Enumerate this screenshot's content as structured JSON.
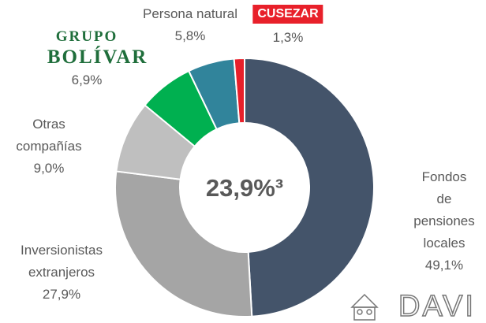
{
  "chart_data": {
    "type": "donut",
    "categories": [
      "Fondos de\npensiones\nlocales",
      "Inversionistas\nextranjeros",
      "Otras\ncompañías",
      "GRUPO\nBOLÍVAR",
      "Persona natural",
      "CUSEZAR"
    ],
    "values": [
      49.1,
      27.9,
      9.0,
      6.9,
      5.8,
      1.3
    ],
    "value_labels": [
      "49,1%",
      "27,9%",
      "9,0%",
      "6,9%",
      "5,8%",
      "1,3%"
    ],
    "colors": [
      "#44546a",
      "#a5a5a5",
      "#bfbfbf",
      "#00b050",
      "#31849b",
      "#e8202a"
    ],
    "center_label": "23,9%³",
    "brand_logo": "DAVI"
  }
}
